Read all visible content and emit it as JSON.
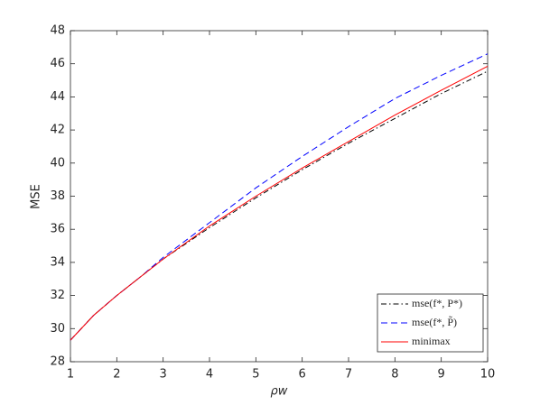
{
  "chart_data": {
    "type": "line",
    "x_label": "ρw",
    "y_label": "MSE",
    "x": [
      1,
      1.5,
      2,
      2.5,
      3,
      4,
      5,
      6,
      7,
      8,
      9,
      10
    ],
    "series": [
      {
        "name": "mse(f*, P*)",
        "color": "#000000",
        "dash": "6,3,1.5,3",
        "values": [
          29.3,
          30.8,
          32.0,
          33.1,
          34.2,
          36.1,
          37.9,
          39.6,
          41.2,
          42.7,
          44.2,
          45.55
        ]
      },
      {
        "name": "mse(f*, P̃)",
        "color": "#0000ff",
        "dash": "7,4",
        "values": [
          29.3,
          30.8,
          32.0,
          33.1,
          34.3,
          36.4,
          38.5,
          40.4,
          42.2,
          43.9,
          45.3,
          46.6
        ]
      },
      {
        "name": "minimax",
        "color": "#ff0000",
        "dash": "none",
        "values": [
          29.3,
          30.8,
          32.0,
          33.1,
          34.2,
          36.2,
          38.0,
          39.7,
          41.3,
          42.9,
          44.4,
          45.85
        ]
      }
    ],
    "xlim": [
      1,
      10
    ],
    "xticks": [
      1,
      2,
      3,
      4,
      5,
      6,
      7,
      8,
      9,
      10
    ],
    "ylim": [
      28,
      48
    ],
    "yticks": [
      28,
      30,
      32,
      34,
      36,
      38,
      40,
      42,
      44,
      46,
      48
    ],
    "grid": false,
    "legend": "lower right"
  }
}
